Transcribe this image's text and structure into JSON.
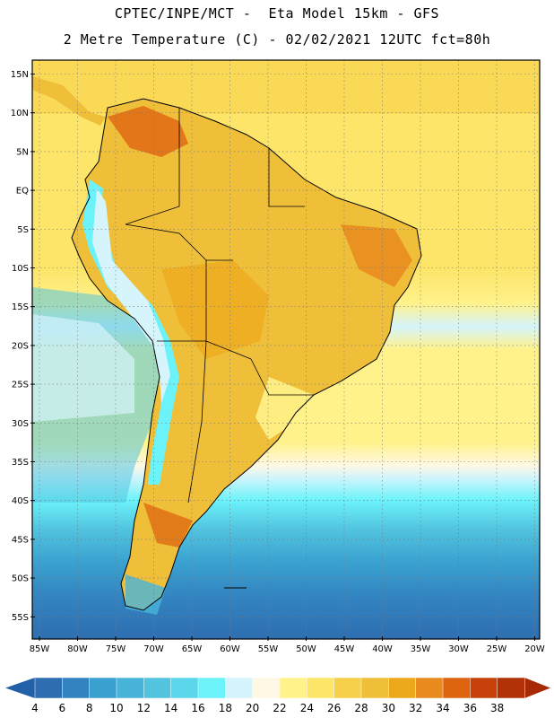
{
  "title": {
    "line1": "CPTEC/INPE/MCT -  Eta Model 15km - GFS",
    "line2": "2 Metre Temperature (C) - 02/02/2021 12UTC fct=80h"
  },
  "map": {
    "lat_labels": [
      "15N",
      "10N",
      "5N",
      "EQ",
      "5S",
      "10S",
      "15S",
      "20S",
      "25S",
      "30S",
      "35S",
      "40S",
      "45S",
      "50S",
      "55S"
    ],
    "lon_labels": [
      "85W",
      "80W",
      "75W",
      "70W",
      "65W",
      "60W",
      "55W",
      "50W",
      "45W",
      "40W",
      "35W",
      "30W",
      "25W",
      "20W"
    ]
  },
  "colorbar": {
    "labels": [
      "4",
      "6",
      "8",
      "10",
      "12",
      "14",
      "16",
      "18",
      "20",
      "22",
      "24",
      "26",
      "28",
      "30",
      "32",
      "34",
      "36",
      "38"
    ],
    "colors": [
      "#2e6eb0",
      "#3383c0",
      "#39a0cf",
      "#48b4da",
      "#52c4e0",
      "#5cd6ea",
      "#6cf3fa",
      "#d5f4fc",
      "#fff8e4",
      "#fff28a",
      "#fce569",
      "#f6d04a",
      "#efbf3a",
      "#eea81c",
      "#e88a1e",
      "#de6410",
      "#c6420a",
      "#b23107"
    ],
    "low_color": "#2260a8",
    "high_color": "#a62a06"
  }
}
